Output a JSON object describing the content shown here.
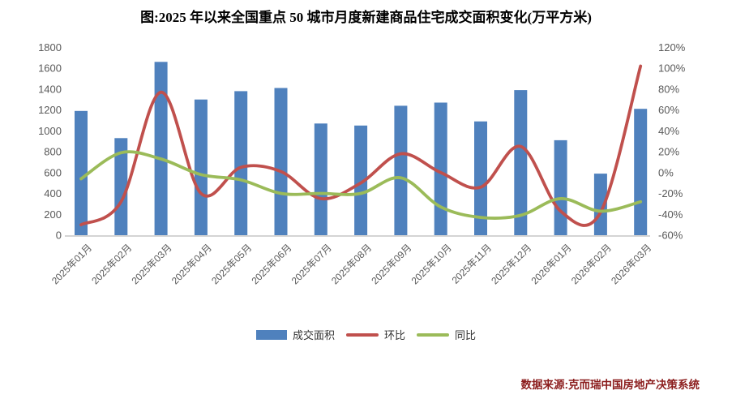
{
  "title": "图:2025 年以来全国重点 50 城市月度新建商品住宅成交面积变化(万平方米)",
  "source": "数据来源:克而瑞中国房地产决策系统",
  "colors": {
    "bar": "#4F81BD",
    "line_mom": "#C0504D",
    "line_yoy": "#9BBB59",
    "axis_text": "#595959",
    "axis_line": "#c6c6c6",
    "source_text": "#8b1c1c"
  },
  "legend": [
    {
      "label": "成交面积",
      "type": "bar",
      "color": "#4F81BD"
    },
    {
      "label": "环比",
      "type": "line",
      "color": "#C0504D"
    },
    {
      "label": "同比",
      "type": "line",
      "color": "#9BBB59"
    }
  ],
  "chart_data": {
    "type": "bar",
    "subtype": "bar+line combo, dual axis, smoothed lines, no gridlines, legend bottom",
    "categories": [
      "2025年01月",
      "2025年02月",
      "2025年03月",
      "2025年04月",
      "2025年05月",
      "2025年06月",
      "2025年07月",
      "2025年08月",
      "2025年09月",
      "2025年10月",
      "2025年11月",
      "2025年12月",
      "2026年01月",
      "2026年02月",
      "2026年03月"
    ],
    "series": [
      {
        "name": "成交面积",
        "type": "bar",
        "axis": "left",
        "color": "#4F81BD",
        "values": [
          1190,
          930,
          1660,
          1300,
          1380,
          1410,
          1070,
          1050,
          1240,
          1270,
          1090,
          1390,
          910,
          590,
          1210
        ]
      },
      {
        "name": "环比",
        "type": "line",
        "axis": "right",
        "color": "#C0504D",
        "unit": "%",
        "values": [
          -50,
          -28,
          77,
          -20,
          5,
          1,
          -25,
          -10,
          18,
          0,
          -14,
          25,
          -37,
          -38,
          102
        ]
      },
      {
        "name": "同比",
        "type": "line",
        "axis": "right",
        "color": "#9BBB59",
        "unit": "%",
        "values": [
          -6,
          19,
          13,
          -2,
          -7,
          -20,
          -20,
          -20,
          -5,
          -33,
          -43,
          -41,
          -25,
          -37,
          -28
        ]
      }
    ],
    "left_axis": {
      "min": 0,
      "max": 1800,
      "step": 200,
      "tick_labels": [
        "0",
        "200",
        "400",
        "600",
        "800",
        "1000",
        "1200",
        "1400",
        "1600",
        "1800"
      ]
    },
    "right_axis": {
      "min": -60,
      "max": 120,
      "step": 20,
      "tick_labels": [
        "-60%",
        "-40%",
        "-20%",
        "0%",
        "20%",
        "40%",
        "60%",
        "80%",
        "100%",
        "120%"
      ]
    },
    "title": "图:2025 年以来全国重点 50 城市月度新建商品住宅成交面积变化(万平方米)",
    "xlabel": "",
    "ylabel": ""
  }
}
